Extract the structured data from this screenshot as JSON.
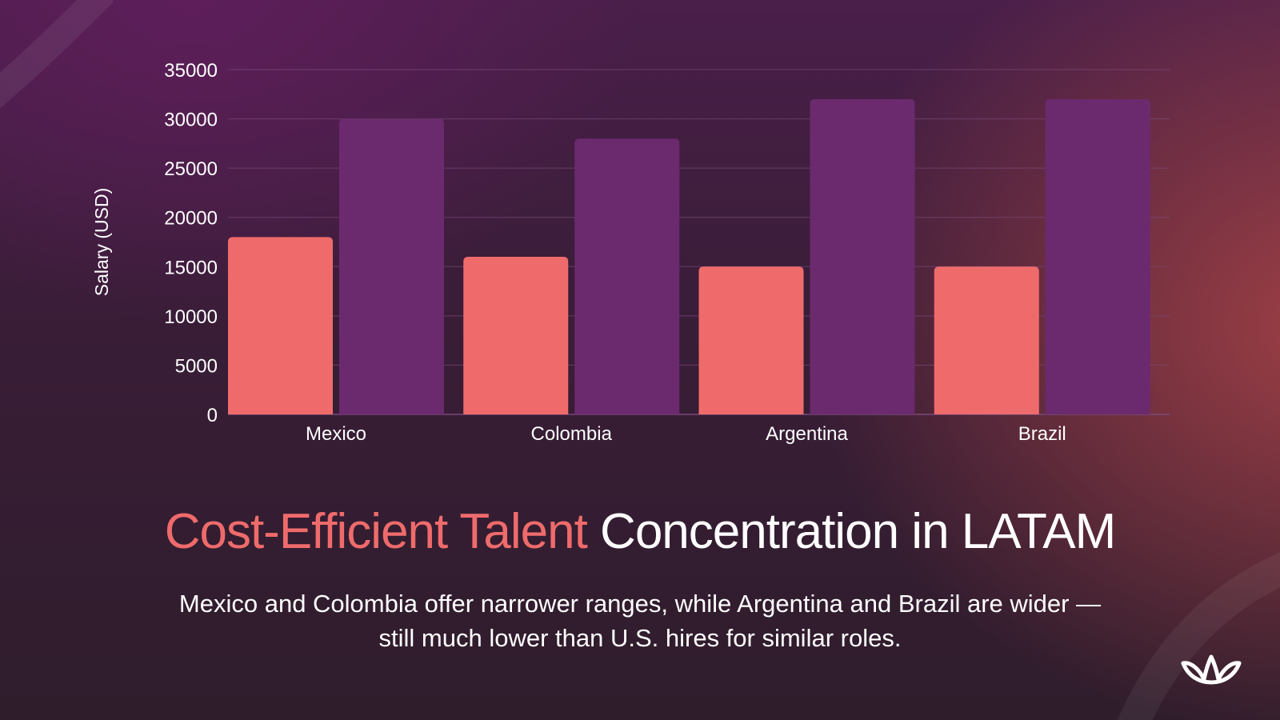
{
  "headline": {
    "accent": "Cost-Efficient Talent",
    "rest": "Concentration in LATAM"
  },
  "subtext": {
    "line1": "Mexico and Colombia offer narrower ranges, while Argentina and Brazil are wider —",
    "line2": "still much lower than U.S. hires for similar roles."
  },
  "colors": {
    "series_low": "#ef6b6b",
    "series_high": "#6b2a6e",
    "accent_text": "#ef6b6b",
    "axis_text": "#ffffff",
    "gridline": "#7a4a7a"
  },
  "logo_icon": "brand-logo-icon",
  "chart_data": {
    "type": "bar",
    "categories": [
      "Mexico",
      "Colombia",
      "Argentina",
      "Brazil"
    ],
    "series": [
      {
        "values": [
          18000,
          16000,
          15000,
          15000
        ]
      },
      {
        "values": [
          30000,
          28000,
          32000,
          32000
        ]
      }
    ],
    "title": "",
    "xlabel": "",
    "ylabel": "Salary (USD)",
    "ylim": [
      0,
      35000
    ],
    "yticks": [
      0,
      5000,
      10000,
      15000,
      20000,
      25000,
      30000,
      35000
    ],
    "grid": true,
    "legend": "none"
  }
}
